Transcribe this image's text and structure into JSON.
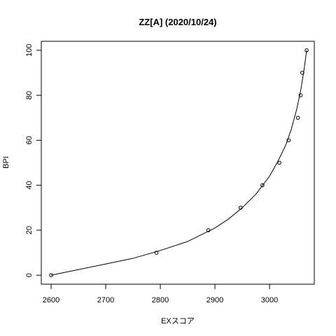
{
  "chart_data": {
    "type": "scatter",
    "title": "ZZ[A] (2020/10/24)",
    "xlabel": "EXスコア",
    "ylabel": "BPI",
    "xlim": [
      2582,
      3082
    ],
    "ylim": [
      -4,
      104
    ],
    "x_ticks": [
      2600,
      2700,
      2800,
      2900,
      3000
    ],
    "y_ticks": [
      0,
      20,
      40,
      60,
      80,
      100
    ],
    "grid": false,
    "points": [
      {
        "x": 2600,
        "y": 0
      },
      {
        "x": 2793,
        "y": 10
      },
      {
        "x": 2888,
        "y": 20
      },
      {
        "x": 2947,
        "y": 30
      },
      {
        "x": 2987,
        "y": 40
      },
      {
        "x": 3018,
        "y": 50
      },
      {
        "x": 3035,
        "y": 60
      },
      {
        "x": 3052,
        "y": 70
      },
      {
        "x": 3057,
        "y": 80
      },
      {
        "x": 3060,
        "y": 90
      },
      {
        "x": 3068,
        "y": 100
      }
    ],
    "curve": {
      "x": [
        2600,
        2650,
        2700,
        2750,
        2800,
        2850,
        2900,
        2925,
        2950,
        2975,
        3000,
        3015,
        3030,
        3040,
        3050,
        3057,
        3063,
        3068
      ],
      "y": [
        0,
        2.5,
        5,
        7.5,
        11,
        15,
        21,
        25,
        30,
        36,
        44,
        50.5,
        58,
        65,
        74,
        82,
        91,
        100
      ]
    }
  }
}
